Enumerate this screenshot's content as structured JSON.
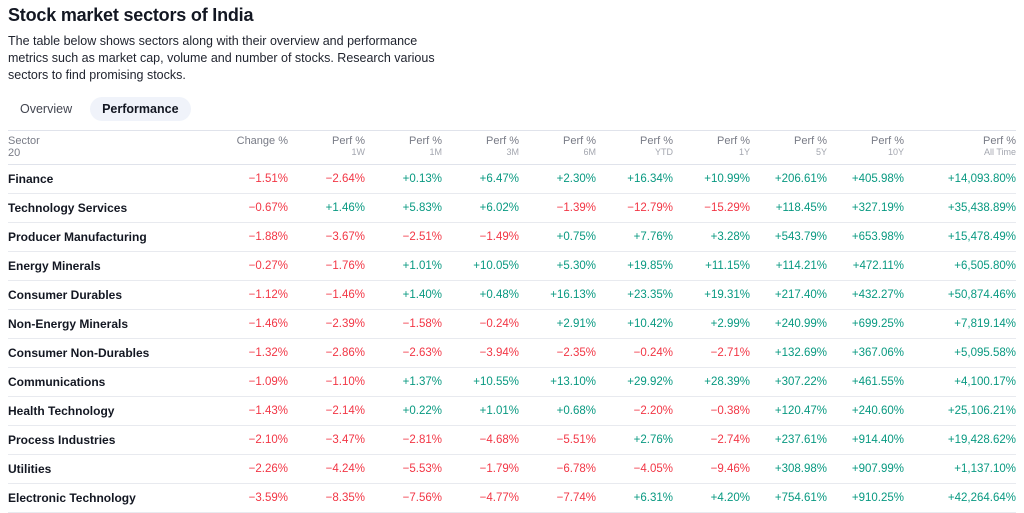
{
  "page": {
    "title": "Stock market sectors of India",
    "description": "The table below shows sectors along with their overview and performance metrics such as market cap, volume and number of stocks. Research various sectors to find promising stocks."
  },
  "tabs": {
    "overview": "Overview",
    "performance": "Performance"
  },
  "colors": {
    "positive": "#089981",
    "negative": "#F23645"
  },
  "table": {
    "sector_header": "Sector",
    "sector_count": "20",
    "columns": [
      {
        "top": "Change %",
        "sub": ""
      },
      {
        "top": "Perf %",
        "sub": "1W"
      },
      {
        "top": "Perf %",
        "sub": "1M"
      },
      {
        "top": "Perf %",
        "sub": "3M"
      },
      {
        "top": "Perf %",
        "sub": "6M"
      },
      {
        "top": "Perf %",
        "sub": "YTD"
      },
      {
        "top": "Perf %",
        "sub": "1Y"
      },
      {
        "top": "Perf %",
        "sub": "5Y"
      },
      {
        "top": "Perf %",
        "sub": "10Y"
      },
      {
        "top": "Perf %",
        "sub": "All Time"
      }
    ],
    "rows": [
      {
        "sector": "Finance",
        "values": [
          "−1.51%",
          "−2.64%",
          "+0.13%",
          "+6.47%",
          "+2.30%",
          "+16.34%",
          "+10.99%",
          "+206.61%",
          "+405.98%",
          "+14,093.80%"
        ]
      },
      {
        "sector": "Technology Services",
        "values": [
          "−0.67%",
          "+1.46%",
          "+5.83%",
          "+6.02%",
          "−1.39%",
          "−12.79%",
          "−15.29%",
          "+118.45%",
          "+327.19%",
          "+35,438.89%"
        ]
      },
      {
        "sector": "Producer Manufacturing",
        "values": [
          "−1.88%",
          "−3.67%",
          "−2.51%",
          "−1.49%",
          "+0.75%",
          "+7.76%",
          "+3.28%",
          "+543.79%",
          "+653.98%",
          "+15,478.49%"
        ]
      },
      {
        "sector": "Energy Minerals",
        "values": [
          "−0.27%",
          "−1.76%",
          "+1.01%",
          "+10.05%",
          "+5.30%",
          "+19.85%",
          "+11.15%",
          "+114.21%",
          "+472.11%",
          "+6,505.80%"
        ]
      },
      {
        "sector": "Consumer Durables",
        "values": [
          "−1.12%",
          "−1.46%",
          "+1.40%",
          "+0.48%",
          "+16.13%",
          "+23.35%",
          "+19.31%",
          "+217.40%",
          "+432.27%",
          "+50,874.46%"
        ]
      },
      {
        "sector": "Non-Energy Minerals",
        "values": [
          "−1.46%",
          "−2.39%",
          "−1.58%",
          "−0.24%",
          "+2.91%",
          "+10.42%",
          "+2.99%",
          "+240.99%",
          "+699.25%",
          "+7,819.14%"
        ]
      },
      {
        "sector": "Consumer Non-Durables",
        "values": [
          "−1.32%",
          "−2.86%",
          "−2.63%",
          "−3.94%",
          "−2.35%",
          "−0.24%",
          "−2.71%",
          "+132.69%",
          "+367.06%",
          "+5,095.58%"
        ]
      },
      {
        "sector": "Communications",
        "values": [
          "−1.09%",
          "−1.10%",
          "+1.37%",
          "+10.55%",
          "+13.10%",
          "+29.92%",
          "+28.39%",
          "+307.22%",
          "+461.55%",
          "+4,100.17%"
        ]
      },
      {
        "sector": "Health Technology",
        "values": [
          "−1.43%",
          "−2.14%",
          "+0.22%",
          "+1.01%",
          "+0.68%",
          "−2.20%",
          "−0.38%",
          "+120.47%",
          "+240.60%",
          "+25,106.21%"
        ]
      },
      {
        "sector": "Process Industries",
        "values": [
          "−2.10%",
          "−3.47%",
          "−2.81%",
          "−4.68%",
          "−5.51%",
          "+2.76%",
          "−2.74%",
          "+237.61%",
          "+914.40%",
          "+19,428.62%"
        ]
      },
      {
        "sector": "Utilities",
        "values": [
          "−2.26%",
          "−4.24%",
          "−5.53%",
          "−1.79%",
          "−6.78%",
          "−4.05%",
          "−9.46%",
          "+308.98%",
          "+907.99%",
          "+1,137.10%"
        ]
      },
      {
        "sector": "Electronic Technology",
        "values": [
          "−3.59%",
          "−8.35%",
          "−7.56%",
          "−4.77%",
          "−7.74%",
          "+6.31%",
          "+4.20%",
          "+754.61%",
          "+910.25%",
          "+42,264.64%"
        ]
      }
    ]
  }
}
